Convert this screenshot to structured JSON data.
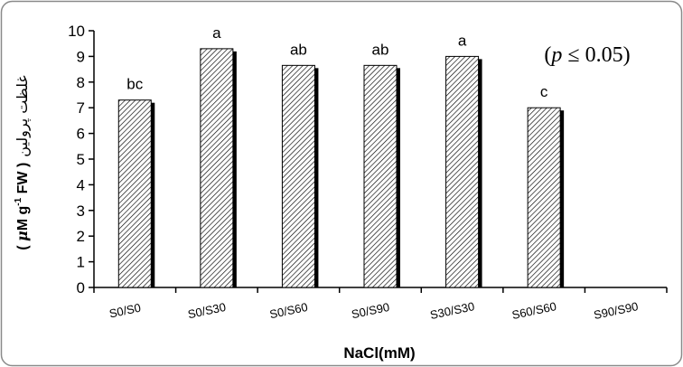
{
  "chart_data": {
    "type": "bar",
    "categories": [
      "S0/S0",
      "S0/S30",
      "S0/S60",
      "S0/S90",
      "S30/S30",
      "S60/S60",
      "S90/S90"
    ],
    "values": [
      7.3,
      9.3,
      8.65,
      8.65,
      9.0,
      7.0,
      null
    ],
    "significance_letters": [
      "bc",
      "a",
      "ab",
      "ab",
      "a",
      "c",
      ""
    ],
    "xlabel": "NaCl(mM)",
    "ylabel": "غلظت پرولین",
    "ylabel_unit_open": "( ",
    "ylabel_unit_mu": "μ",
    "ylabel_unit_main": "M g",
    "ylabel_unit_sup": "-1",
    "ylabel_unit_close": " FW )",
    "annotation": "(p ≤ 0.05)",
    "annotation_open": "(",
    "annotation_p": "p",
    "annotation_rest": " ≤ 0.05)",
    "ylim": [
      0,
      10
    ],
    "yticks": [
      0,
      1,
      2,
      3,
      4,
      5,
      6,
      7,
      8,
      9,
      10
    ],
    "grid": false,
    "bar_fill": "hatched",
    "colors": {
      "bar_edge": "#000000",
      "hatch": "#000000",
      "bar_shadow": "#000000",
      "background": "#ffffff"
    }
  }
}
